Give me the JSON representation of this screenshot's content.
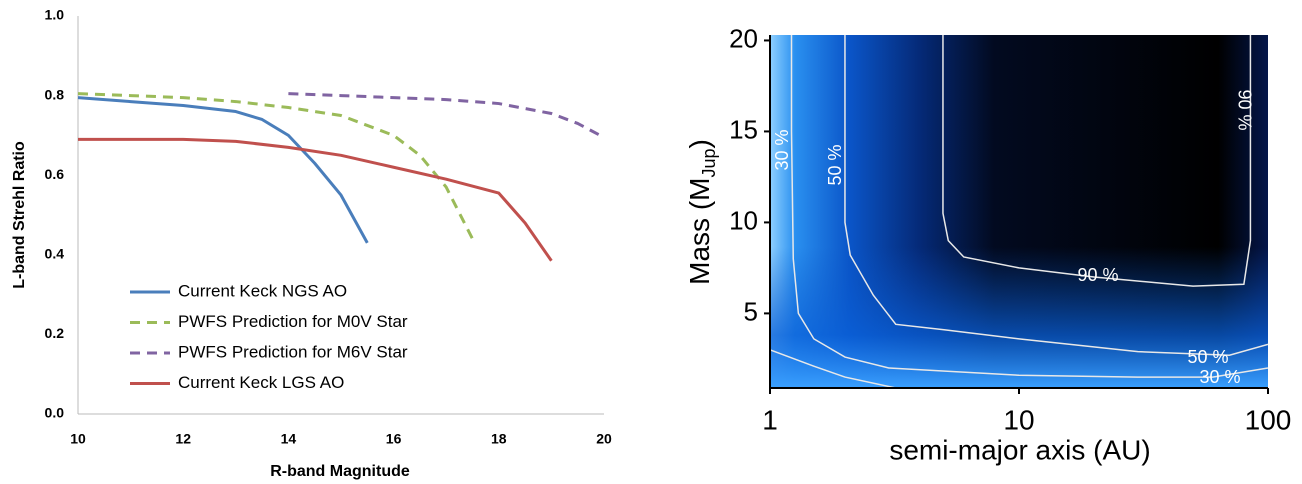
{
  "chart_data": [
    {
      "type": "line",
      "xlabel": "R-band Magnitude",
      "ylabel": "L-band Strehl Ratio",
      "xlim": [
        10,
        20
      ],
      "xticks": [
        10,
        12,
        14,
        16,
        18,
        20
      ],
      "ylim": [
        0,
        1
      ],
      "yticks": [
        {
          "value": 0,
          "label": "0.0"
        },
        0.2,
        0.4,
        0.6,
        0.8,
        {
          "value": 1,
          "label": "1.0"
        }
      ],
      "legend": "lower left",
      "series": [
        {
          "name": "Current Keck NGS AO",
          "color": "#4a7ebb",
          "dashed": false,
          "x": [
            10,
            11,
            12,
            13,
            13.5,
            14,
            14.5,
            15,
            15.5
          ],
          "values": [
            0.795,
            0.785,
            0.775,
            0.76,
            0.74,
            0.7,
            0.63,
            0.55,
            0.43
          ]
        },
        {
          "name": "PWFS Prediction for M0V Star",
          "color": "#9bbb59",
          "dashed": true,
          "x": [
            10,
            11,
            12,
            13,
            14,
            15,
            16,
            16.5,
            17,
            17.5
          ],
          "values": [
            0.805,
            0.8,
            0.795,
            0.785,
            0.77,
            0.75,
            0.7,
            0.65,
            0.57,
            0.44
          ]
        },
        {
          "name": "PWFS Prediction for M6V Star",
          "color": "#8064a2",
          "dashed": true,
          "x": [
            14,
            15,
            16,
            17,
            18,
            19,
            19.5,
            20
          ],
          "values": [
            0.805,
            0.8,
            0.795,
            0.79,
            0.78,
            0.755,
            0.73,
            0.695
          ]
        },
        {
          "name": "Current Keck LGS AO",
          "color": "#c0504d",
          "dashed": false,
          "x": [
            10,
            11,
            12,
            13,
            14,
            15,
            16,
            17,
            18,
            18.5,
            19
          ],
          "values": [
            0.69,
            0.69,
            0.69,
            0.685,
            0.67,
            0.65,
            0.62,
            0.59,
            0.555,
            0.48,
            0.385
          ]
        }
      ]
    },
    {
      "type": "contour",
      "xlabel": "semi-major axis (AU)",
      "ylabel": [
        "Mass (M",
        "Jup",
        ")"
      ],
      "xlog": true,
      "xlim": [
        1,
        100
      ],
      "xticks": [
        1,
        10,
        100
      ],
      "ylim": [
        0.9,
        20.3
      ],
      "yticks": [
        5,
        10,
        15,
        20
      ],
      "contours": [
        {
          "label": "30 %",
          "x": [
            1.22,
            1.22,
            1.24,
            1.3,
            1.5,
            2,
            3,
            10,
            30,
            60,
            100
          ],
          "values": [
            20.3,
            15,
            8,
            5,
            3.6,
            2.6,
            2.0,
            1.6,
            1.5,
            1.5,
            2.0
          ]
        },
        {
          "label": "50 %",
          "x": [
            2,
            2,
            2.1,
            2.6,
            3.2,
            5,
            10,
            30,
            70,
            100
          ],
          "values": [
            20.3,
            10,
            8.2,
            6,
            4.4,
            4.1,
            3.6,
            2.9,
            2.7,
            3.3
          ]
        },
        {
          "label": "90 %",
          "x": [
            4.95,
            4.95,
            5.2,
            6,
            10,
            20,
            50,
            80,
            85,
            85
          ],
          "values": [
            20.3,
            10.5,
            9,
            8.1,
            7.5,
            7,
            6.5,
            6.6,
            9,
            20.3
          ]
        },
        {
          "x": [
            1,
            1.5,
            2,
            3.2
          ],
          "values": [
            3.0,
            2.1,
            1.5,
            0.9
          ]
        }
      ]
    }
  ]
}
